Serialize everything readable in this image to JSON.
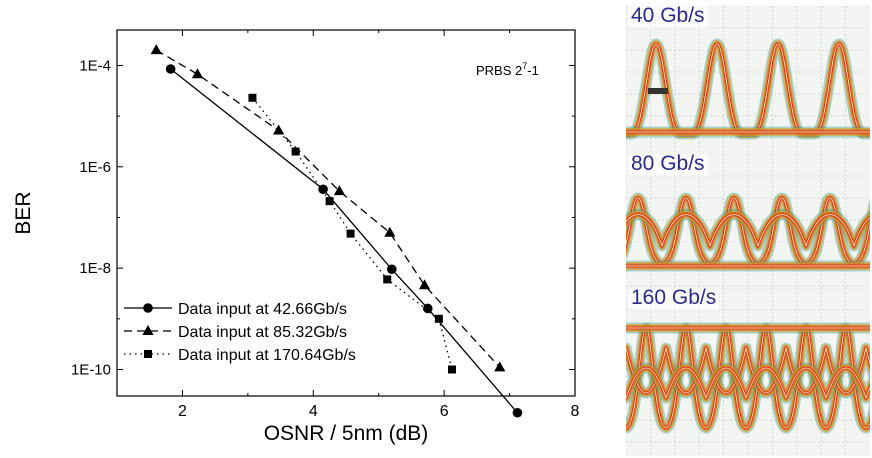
{
  "chart_data": {
    "type": "scatter",
    "xlabel": "OSNR / 5nm (dB)",
    "ylabel": "BER",
    "xlim": [
      1,
      8
    ],
    "ylim": [
      3e-11,
      0.0005
    ],
    "yscale": "log",
    "xticks": [
      2,
      4,
      6,
      8
    ],
    "yticks": [
      0.0001,
      1e-06,
      1e-08,
      1e-10
    ],
    "ytick_labels": [
      "1E-4",
      "1E-6",
      "1E-8",
      "1E-10"
    ],
    "annotation": {
      "base": "PRBS 2",
      "sup": "7",
      "suffix": "-1"
    },
    "legend_position": "bottom-left",
    "series": [
      {
        "name": "Data input at 42.66Gb/s",
        "marker": "circle",
        "line": "solid",
        "x": [
          1.82,
          4.15,
          5.2,
          5.75,
          7.12
        ],
        "y": [
          8.5e-05,
          3.6e-07,
          9.5e-09,
          1.6e-09,
          1.4e-11
        ]
      },
      {
        "name": "Data input at 85.32Gb/s",
        "marker": "triangle",
        "line": "dashed",
        "x": [
          1.6,
          2.23,
          3.47,
          4.4,
          5.17,
          5.7,
          6.85
        ],
        "y": [
          0.0002,
          6.7e-05,
          5.2e-06,
          3.3e-07,
          5e-08,
          4.6e-09,
          1.1e-10
        ]
      },
      {
        "name": "Data input at 170.64Gb/s",
        "marker": "square",
        "line": "dotted",
        "x": [
          3.07,
          3.73,
          4.25,
          4.57,
          5.13,
          5.92,
          6.12
        ],
        "y": [
          2.3e-05,
          2e-06,
          2.1e-07,
          4.8e-08,
          6e-09,
          1e-09,
          1e-10
        ]
      }
    ]
  },
  "eye_diagrams": [
    {
      "label": "40 Gb/s"
    },
    {
      "label": "80 Gb/s"
    },
    {
      "label": "160 Gb/s"
    }
  ]
}
